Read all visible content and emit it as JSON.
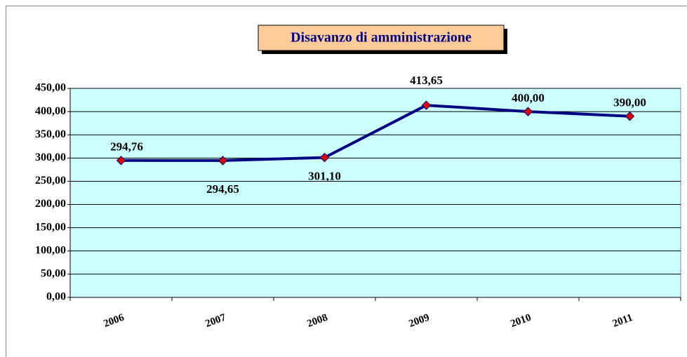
{
  "chart_data": {
    "type": "line",
    "title": "Disavanzo di amministrazione",
    "categories": [
      "2006",
      "2007",
      "2008",
      "2009",
      "2010",
      "2011"
    ],
    "series": [
      {
        "name": "Disavanzo di amministrazione",
        "color": "#000080",
        "values": [
          294.76,
          294.65,
          301.1,
          413.65,
          400,
          390
        ],
        "value_labels": [
          "294,76",
          "294,65",
          "301,10",
          "413,65",
          "400,00",
          "390,00"
        ]
      }
    ],
    "ylim": [
      0,
      450
    ],
    "yticks": [
      {
        "value": 0,
        "label": "0,00"
      },
      {
        "value": 50,
        "label": "50,00"
      },
      {
        "value": 100,
        "label": "100,00"
      },
      {
        "value": 150,
        "label": "150,00"
      },
      {
        "value": 200,
        "label": "200,00"
      },
      {
        "value": 250,
        "label": "250,00"
      },
      {
        "value": 300,
        "label": "300,00"
      },
      {
        "value": 350,
        "label": "350,00"
      },
      {
        "value": 400,
        "label": "400,00"
      },
      {
        "value": 450,
        "label": "450,00"
      }
    ],
    "grid": true,
    "marker_color": "#e00000",
    "plot_background": "#ccffff"
  }
}
